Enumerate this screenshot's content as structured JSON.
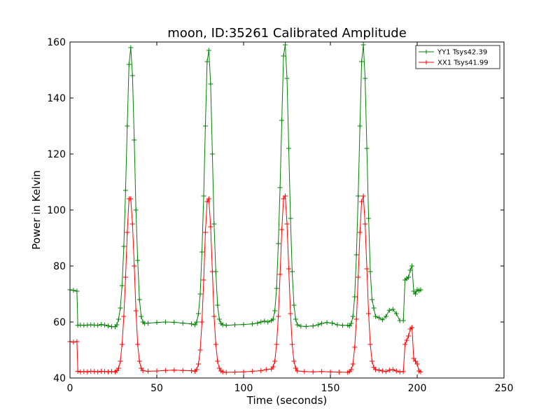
{
  "chart_data": {
    "type": "line",
    "title": "moon, ID:35261 Calibrated Amplitude",
    "xlabel": "Time (seconds)",
    "ylabel": "Power in Kelvin",
    "xlim": [
      0,
      250
    ],
    "ylim": [
      40,
      160
    ],
    "xticks": [
      "0",
      "50",
      "100",
      "150",
      "200",
      "250"
    ],
    "yticks": [
      "40",
      "60",
      "80",
      "100",
      "120",
      "140",
      "160"
    ],
    "grid": false,
    "legend_position": "top-right",
    "marker": "plus",
    "series": [
      {
        "name": "YY1 Tsys42.39",
        "color": "#008000",
        "points": [
          [
            0,
            71.5
          ],
          [
            2,
            71.3
          ],
          [
            4,
            71.0
          ],
          [
            4.5,
            58.8
          ],
          [
            6,
            58.9
          ],
          [
            8,
            58.8
          ],
          [
            10,
            58.9
          ],
          [
            12,
            59.0
          ],
          [
            14,
            58.9
          ],
          [
            16,
            58.8
          ],
          [
            18,
            59.1
          ],
          [
            20,
            58.9
          ],
          [
            22,
            58.6
          ],
          [
            24,
            58.3
          ],
          [
            26,
            58.3
          ],
          [
            27,
            59.0
          ],
          [
            28,
            61
          ],
          [
            29,
            65
          ],
          [
            30,
            73
          ],
          [
            31,
            87
          ],
          [
            32,
            107
          ],
          [
            33,
            130
          ],
          [
            34,
            152
          ],
          [
            35,
            158
          ],
          [
            36,
            148
          ],
          [
            37,
            125
          ],
          [
            38,
            100
          ],
          [
            39,
            82
          ],
          [
            40,
            68
          ],
          [
            41,
            62
          ],
          [
            42,
            60
          ],
          [
            43,
            59.5
          ],
          [
            45,
            59.6
          ],
          [
            50,
            59.8
          ],
          [
            55,
            60.0
          ],
          [
            60,
            59.9
          ],
          [
            65,
            59.6
          ],
          [
            70,
            59.3
          ],
          [
            72,
            59.0
          ],
          [
            73,
            60
          ],
          [
            74,
            63
          ],
          [
            75,
            70
          ],
          [
            76,
            85
          ],
          [
            77,
            105
          ],
          [
            78,
            130
          ],
          [
            79,
            153
          ],
          [
            80,
            157
          ],
          [
            81,
            145
          ],
          [
            82,
            120
          ],
          [
            83,
            95
          ],
          [
            84,
            78
          ],
          [
            85,
            66
          ],
          [
            86,
            61
          ],
          [
            87,
            59.5
          ],
          [
            88,
            59.0
          ],
          [
            90,
            58.8
          ],
          [
            95,
            59.0
          ],
          [
            100,
            59.1
          ],
          [
            105,
            59.3
          ],
          [
            108,
            59.6
          ],
          [
            110,
            60.0
          ],
          [
            112,
            60.3
          ],
          [
            114,
            60.0
          ],
          [
            116,
            60.5
          ],
          [
            117,
            61
          ],
          [
            118,
            64
          ],
          [
            119,
            72
          ],
          [
            120,
            88
          ],
          [
            121,
            108
          ],
          [
            122,
            132
          ],
          [
            123,
            155
          ],
          [
            124,
            159
          ],
          [
            125,
            147
          ],
          [
            126,
            122
          ],
          [
            127,
            97
          ],
          [
            128,
            78
          ],
          [
            129,
            66
          ],
          [
            130,
            61
          ],
          [
            131,
            59
          ],
          [
            133,
            58.5
          ],
          [
            136,
            58.4
          ],
          [
            140,
            58.6
          ],
          [
            143,
            59.0
          ],
          [
            145,
            59.5
          ],
          [
            148,
            59.8
          ],
          [
            151,
            59.6
          ],
          [
            154,
            59.0
          ],
          [
            157,
            58.8
          ],
          [
            160,
            58.8
          ],
          [
            161,
            58.6
          ],
          [
            162,
            59.5
          ],
          [
            163,
            62
          ],
          [
            164,
            69
          ],
          [
            165,
            84
          ],
          [
            166,
            105
          ],
          [
            167,
            130
          ],
          [
            168,
            153
          ],
          [
            169,
            159
          ],
          [
            170,
            147
          ],
          [
            171,
            122
          ],
          [
            172,
            97
          ],
          [
            173,
            78
          ],
          [
            174,
            68
          ],
          [
            175,
            65
          ],
          [
            176,
            62
          ],
          [
            178,
            61.5
          ],
          [
            180,
            60.8
          ],
          [
            182,
            62.0
          ],
          [
            184,
            64.2
          ],
          [
            186,
            64.5
          ],
          [
            188,
            63.0
          ],
          [
            190,
            60.5
          ],
          [
            192,
            60.5
          ],
          [
            193,
            75
          ],
          [
            194,
            75.5
          ],
          [
            195,
            76
          ],
          [
            196,
            78.5
          ],
          [
            197,
            80
          ],
          [
            198,
            71
          ],
          [
            199,
            70
          ],
          [
            200,
            71.5
          ],
          [
            201,
            71.2
          ],
          [
            202,
            71.5
          ]
        ]
      },
      {
        "name": "XX1 Tsys41.99",
        "color": "#ff0000",
        "points": [
          [
            0,
            53.0
          ],
          [
            2,
            52.8
          ],
          [
            4,
            53.0
          ],
          [
            4.5,
            42.4
          ],
          [
            6,
            42.2
          ],
          [
            8,
            42.3
          ],
          [
            10,
            42.2
          ],
          [
            12,
            42.4
          ],
          [
            14,
            42.3
          ],
          [
            16,
            42.2
          ],
          [
            18,
            42.4
          ],
          [
            20,
            42.3
          ],
          [
            22,
            42.2
          ],
          [
            24,
            42.3
          ],
          [
            26,
            42.2
          ],
          [
            27,
            42.6
          ],
          [
            28,
            43.5
          ],
          [
            29,
            46
          ],
          [
            30,
            52
          ],
          [
            31,
            62
          ],
          [
            32,
            76
          ],
          [
            33,
            92
          ],
          [
            34,
            104
          ],
          [
            35,
            104
          ],
          [
            36,
            95
          ],
          [
            37,
            80
          ],
          [
            38,
            64
          ],
          [
            39,
            52
          ],
          [
            40,
            46
          ],
          [
            41,
            43.5
          ],
          [
            42,
            42.6
          ],
          [
            45,
            42.4
          ],
          [
            50,
            42.5
          ],
          [
            55,
            42.7
          ],
          [
            60,
            42.8
          ],
          [
            65,
            42.7
          ],
          [
            70,
            42.6
          ],
          [
            72,
            42.4
          ],
          [
            73,
            43
          ],
          [
            74,
            45
          ],
          [
            75,
            50
          ],
          [
            76,
            60
          ],
          [
            77,
            75
          ],
          [
            78,
            92
          ],
          [
            79,
            103
          ],
          [
            80,
            104
          ],
          [
            81,
            94
          ],
          [
            82,
            78
          ],
          [
            83,
            62
          ],
          [
            84,
            52
          ],
          [
            85,
            46
          ],
          [
            86,
            43.5
          ],
          [
            87,
            42.5
          ],
          [
            88,
            42.2
          ],
          [
            90,
            42.0
          ],
          [
            95,
            42.1
          ],
          [
            100,
            42.2
          ],
          [
            105,
            42.4
          ],
          [
            110,
            42.6
          ],
          [
            113,
            43.0
          ],
          [
            116,
            43.2
          ],
          [
            117,
            44
          ],
          [
            118,
            46
          ],
          [
            119,
            52
          ],
          [
            120,
            62
          ],
          [
            121,
            77
          ],
          [
            122,
            93
          ],
          [
            123,
            104
          ],
          [
            124,
            105
          ],
          [
            125,
            95
          ],
          [
            126,
            79
          ],
          [
            127,
            63
          ],
          [
            128,
            52
          ],
          [
            129,
            46
          ],
          [
            130,
            43.5
          ],
          [
            131,
            42.5
          ],
          [
            135,
            42.3
          ],
          [
            140,
            42.2
          ],
          [
            145,
            42.3
          ],
          [
            150,
            42.2
          ],
          [
            155,
            42.1
          ],
          [
            160,
            42.0
          ],
          [
            161,
            42.3
          ],
          [
            162,
            43
          ],
          [
            163,
            45
          ],
          [
            164,
            51
          ],
          [
            165,
            61
          ],
          [
            166,
            76
          ],
          [
            167,
            92
          ],
          [
            168,
            103
          ],
          [
            169,
            105
          ],
          [
            170,
            95
          ],
          [
            171,
            79
          ],
          [
            172,
            63
          ],
          [
            173,
            52
          ],
          [
            174,
            46
          ],
          [
            175,
            43.8
          ],
          [
            176,
            43
          ],
          [
            178,
            42.8
          ],
          [
            180,
            42.5
          ],
          [
            182,
            42.3
          ],
          [
            184,
            42.8
          ],
          [
            186,
            43.0
          ],
          [
            188,
            42.5
          ],
          [
            190,
            42.2
          ],
          [
            192,
            42.3
          ],
          [
            193,
            52
          ],
          [
            194,
            53.5
          ],
          [
            195,
            55
          ],
          [
            196,
            57.5
          ],
          [
            197,
            58
          ],
          [
            198,
            47
          ],
          [
            199,
            46
          ],
          [
            200,
            45
          ],
          [
            201,
            42.5
          ],
          [
            202,
            42.2
          ]
        ]
      }
    ]
  }
}
